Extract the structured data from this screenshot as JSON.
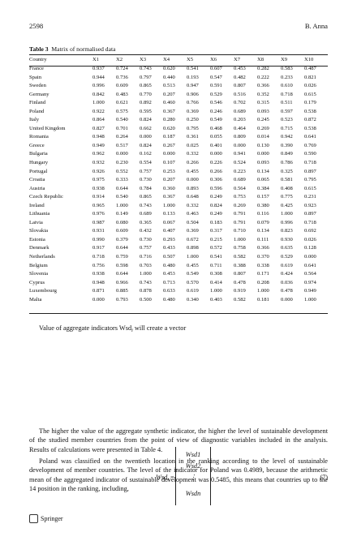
{
  "running_head": {
    "page": "2598",
    "author": "B. Anna"
  },
  "table": {
    "label": "Table 3",
    "title": "Matrix of normalised data",
    "columns": [
      "Country",
      "X1",
      "X2",
      "X3",
      "X4",
      "X5",
      "X6",
      "X7",
      "X8",
      "X9",
      "X10"
    ],
    "rows": [
      [
        "France",
        "0.937",
        "0.724",
        "0.743",
        "0.620",
        "0.541",
        "0.607",
        "0.453",
        "0.282",
        "0.583",
        "0.487"
      ],
      [
        "Spain",
        "0.944",
        "0.736",
        "0.797",
        "0.440",
        "0.193",
        "0.547",
        "0.482",
        "0.222",
        "0.233",
        "0.821"
      ],
      [
        "Sweden",
        "0.996",
        "0.609",
        "0.865",
        "0.513",
        "0.947",
        "0.591",
        "0.807",
        "0.366",
        "0.610",
        "0.026"
      ],
      [
        "Germany",
        "0.842",
        "0.483",
        "0.770",
        "0.207",
        "0.906",
        "0.529",
        "0.516",
        "0.352",
        "0.718",
        "0.615"
      ],
      [
        "Finland",
        "1.000",
        "0.621",
        "0.892",
        "0.460",
        "0.766",
        "0.546",
        "0.702",
        "0.315",
        "0.511",
        "0.179"
      ],
      [
        "Poland",
        "0.922",
        "0.575",
        "0.595",
        "0.367",
        "0.369",
        "0.246",
        "0.689",
        "0.093",
        "0.597",
        "0.538"
      ],
      [
        "Italy",
        "0.864",
        "0.540",
        "0.824",
        "0.280",
        "0.250",
        "0.549",
        "0.203",
        "0.245",
        "0.523",
        "0.872"
      ],
      [
        "United Kingdom",
        "0.827",
        "0.701",
        "0.662",
        "0.620",
        "0.795",
        "0.468",
        "0.464",
        "0.269",
        "0.715",
        "0.538"
      ],
      [
        "Romania",
        "0.948",
        "0.264",
        "0.000",
        "0.187",
        "0.361",
        "0.055",
        "0.809",
        "0.014",
        "0.942",
        "0.641"
      ],
      [
        "Greece",
        "0.949",
        "0.517",
        "0.824",
        "0.267",
        "0.025",
        "0.401",
        "0.000",
        "0.130",
        "0.390",
        "0.769"
      ],
      [
        "Bulgaria",
        "0.962",
        "0.000",
        "0.162",
        "0.000",
        "0.332",
        "0.000",
        "0.941",
        "0.000",
        "0.849",
        "0.590"
      ],
      [
        "Hungary",
        "0.932",
        "0.230",
        "0.554",
        "0.107",
        "0.266",
        "0.226",
        "0.524",
        "0.093",
        "0.786",
        "0.718"
      ],
      [
        "Portugal",
        "0.926",
        "0.552",
        "0.757",
        "0.253",
        "0.455",
        "0.266",
        "0.223",
        "0.134",
        "0.325",
        "0.897"
      ],
      [
        "Croatia",
        "0.975",
        "0.333",
        "0.730",
        "0.207",
        "0.000",
        "0.306",
        "0.689",
        "0.065",
        "0.581",
        "0.795"
      ],
      [
        "Austria",
        "0.938",
        "0.644",
        "0.784",
        "0.360",
        "0.893",
        "0.596",
        "0.564",
        "0.384",
        "0.408",
        "0.615"
      ],
      [
        "Czech Republic",
        "0.914",
        "0.540",
        "0.865",
        "0.367",
        "0.648",
        "0.249",
        "0.753",
        "0.157",
        "0.775",
        "0.231"
      ],
      [
        "Ireland",
        "0.965",
        "1.000",
        "0.743",
        "1.000",
        "0.332",
        "0.824",
        "0.269",
        "0.380",
        "0.425",
        "0.923"
      ],
      [
        "Lithuania",
        "0.976",
        "0.149",
        "0.689",
        "0.133",
        "0.463",
        "0.249",
        "0.791",
        "0.116",
        "1.000",
        "0.897"
      ],
      [
        "Latvia",
        "0.987",
        "0.080",
        "0.365",
        "0.067",
        "0.504",
        "0.183",
        "0.791",
        "0.079",
        "0.996",
        "0.718"
      ],
      [
        "Slovakia",
        "0.931",
        "0.609",
        "0.432",
        "0.407",
        "0.369",
        "0.317",
        "0.710",
        "0.134",
        "0.823",
        "0.692"
      ],
      [
        "Estonia",
        "0.990",
        "0.379",
        "0.730",
        "0.293",
        "0.672",
        "0.215",
        "1.000",
        "0.111",
        "0.930",
        "0.026"
      ],
      [
        "Denmark",
        "0.917",
        "0.644",
        "0.757",
        "0.433",
        "0.898",
        "0.572",
        "0.758",
        "0.366",
        "0.635",
        "0.128"
      ],
      [
        "Netherlands",
        "0.718",
        "0.759",
        "0.716",
        "0.507",
        "1.000",
        "0.541",
        "0.582",
        "0.370",
        "0.529",
        "0.000"
      ],
      [
        "Belgium",
        "0.756",
        "0.598",
        "0.703",
        "0.480",
        "0.455",
        "0.711",
        "0.388",
        "0.338",
        "0.619",
        "0.641"
      ],
      [
        "Slovenia",
        "0.938",
        "0.644",
        "1.000",
        "0.453",
        "0.549",
        "0.308",
        "0.807",
        "0.171",
        "0.424",
        "0.564"
      ],
      [
        "Cyprus",
        "0.948",
        "0.966",
        "0.743",
        "0.713",
        "0.570",
        "0.414",
        "0.478",
        "0.208",
        "0.036",
        "0.974"
      ],
      [
        "Luxembourg",
        "0.871",
        "0.885",
        "0.878",
        "0.633",
        "0.619",
        "1.000",
        "0.919",
        "1.000",
        "0.478",
        "0.949"
      ],
      [
        "Malta",
        "0.000",
        "0.793",
        "0.500",
        "0.480",
        "0.340",
        "0.403",
        "0.582",
        "0.181",
        "0.000",
        "1.000"
      ]
    ]
  },
  "text": {
    "intro": "Value of aggregate indicators Wsd",
    "intro_sub": "i",
    "intro_rest": " will create a vector",
    "eq_lhs": "Wsd",
    "eq_lhs_sub": "i",
    "eq_eq": " =",
    "vec": [
      "Wsd1",
      "Wsd2",
      "⋮",
      "Wsdn"
    ],
    "eq_number": "(7)",
    "p1": "The higher the value of the aggregate synthetic indicator, the higher the level of sustainable development of the studied member countries from the point of view of diagnostic variables included in the analysis. Results of calculations were presented in Table 4.",
    "p2": "Poland was classified on the twentieth location in the ranking according to the level of sustainable development of member countries. The level of the indicator for Poland was 0.4989, because the arithmetic mean of the aggregated indicator of sustainable development was 0.5485, this means that countries up to the 14 position in the ranking, including,"
  },
  "footer": {
    "publisher": "Springer"
  }
}
